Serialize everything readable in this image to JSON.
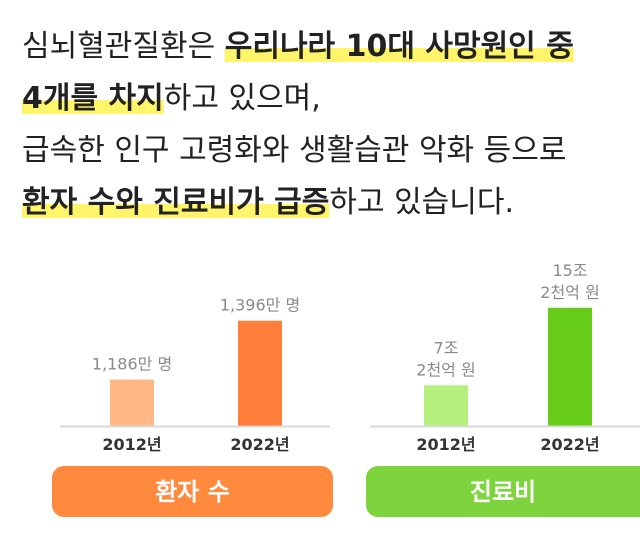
{
  "paragraph": {
    "lines": [
      {
        "segments": [
          {
            "text": "심뇌혈관질환은 ",
            "emphasis": false
          },
          {
            "text": "우리나라 10대 사망원인 중",
            "emphasis": true
          }
        ]
      },
      {
        "segments": [
          {
            "text": "4개를 차지",
            "emphasis": true
          },
          {
            "text": "하고 있으며,",
            "emphasis": false
          }
        ]
      },
      {
        "segments": [
          {
            "text": "급속한 인구 고령화와 생활습관 악화 등으로",
            "emphasis": false
          }
        ]
      },
      {
        "segments": [
          {
            "text": "환자 수와 진료비가 급증",
            "emphasis": true
          },
          {
            "text": "하고 있습니다.",
            "emphasis": false
          }
        ]
      }
    ],
    "highlight_color": "#fff46a"
  },
  "chart_data": [
    {
      "type": "bar",
      "title": "환자 수",
      "title_color": "#ff8a3d",
      "categories": [
        "2012년",
        "2022년"
      ],
      "values": [
        1186,
        1396
      ],
      "value_labels": [
        [
          "1,186만 명"
        ],
        [
          "1,396만 명"
        ]
      ],
      "colors": [
        "#ffb785",
        "#ff7f3a"
      ],
      "ylim": [
        1020,
        1470
      ]
    },
    {
      "type": "bar",
      "title": "진료비",
      "title_color": "#7ed43c",
      "categories": [
        "2012년",
        "2022년"
      ],
      "values": [
        7.2,
        15.2
      ],
      "value_labels": [
        [
          "7조",
          "2천억 원"
        ],
        [
          "15조",
          "2천억 원"
        ]
      ],
      "colors": [
        "#b5ef7c",
        "#66cc18"
      ],
      "ylim": [
        3,
        16
      ]
    }
  ]
}
